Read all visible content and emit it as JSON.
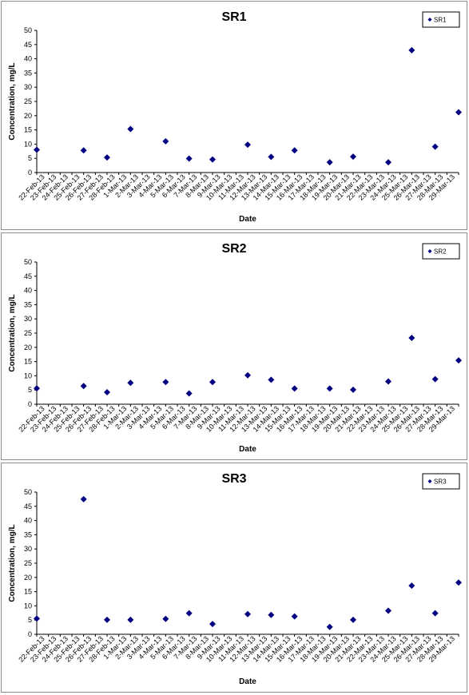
{
  "chart_data": [
    {
      "type": "scatter",
      "title": "SR1",
      "xlabel": "Date",
      "ylabel": "Concentration, mg/L",
      "ylim": [
        0,
        50
      ],
      "yticks": [
        "0",
        "5",
        "10",
        "15",
        "20",
        "25",
        "30",
        "35",
        "40",
        "45",
        "50"
      ],
      "categories": [
        "22-Feb-13",
        "23-Feb-13",
        "24-Feb-13",
        "25-Feb-13",
        "26-Feb-13",
        "27-Feb-13",
        "28-Feb-13",
        "1-Mar-13",
        "2-Mar-13",
        "3-Mar-13",
        "4-Mar-13",
        "5-Mar-13",
        "6-Mar-13",
        "7-Mar-13",
        "8-Mar-13",
        "9-Mar-13",
        "10-Mar-13",
        "11-Mar-13",
        "12-Mar-13",
        "13-Mar-13",
        "14-Mar-13",
        "15-Mar-13",
        "16-Mar-13",
        "17-Mar-13",
        "18-Mar-13",
        "19-Mar-13",
        "20-Mar-13",
        "21-Mar-13",
        "22-Mar-13",
        "23-Mar-13",
        "24-Mar-13",
        "25-Mar-13",
        "26-Mar-13",
        "27-Mar-13",
        "28-Mar-13",
        "29-Mar-13"
      ],
      "legend_position": "top-right",
      "color": "#000080",
      "series": [
        {
          "name": "SR1",
          "points": [
            {
              "x": "22-Feb-13",
              "y": 8.0
            },
            {
              "x": "26-Feb-13",
              "y": 7.8
            },
            {
              "x": "28-Feb-13",
              "y": 5.3
            },
            {
              "x": "2-Mar-13",
              "y": 15.3
            },
            {
              "x": "5-Mar-13",
              "y": 11.0
            },
            {
              "x": "7-Mar-13",
              "y": 4.9
            },
            {
              "x": "9-Mar-13",
              "y": 4.6
            },
            {
              "x": "12-Mar-13",
              "y": 9.8
            },
            {
              "x": "14-Mar-13",
              "y": 5.5
            },
            {
              "x": "16-Mar-13",
              "y": 7.8
            },
            {
              "x": "19-Mar-13",
              "y": 3.6
            },
            {
              "x": "21-Mar-13",
              "y": 5.6
            },
            {
              "x": "24-Mar-13",
              "y": 3.6
            },
            {
              "x": "26-Mar-13",
              "y": 43.0
            },
            {
              "x": "28-Mar-13",
              "y": 9.1
            },
            {
              "x": "30-Mar-13",
              "y": 21.2
            }
          ]
        }
      ]
    },
    {
      "type": "scatter",
      "title": "SR2",
      "xlabel": "Date",
      "ylabel": "Concentration, mg/L",
      "ylim": [
        0,
        50
      ],
      "yticks": [
        "0",
        "5",
        "10",
        "15",
        "20",
        "25",
        "30",
        "35",
        "40",
        "45",
        "50"
      ],
      "categories": [
        "22-Feb-13",
        "23-Feb-13",
        "24-Feb-13",
        "25-Feb-13",
        "26-Feb-13",
        "27-Feb-13",
        "28-Feb-13",
        "1-Mar-13",
        "2-Mar-13",
        "3-Mar-13",
        "4-Mar-13",
        "5-Mar-13",
        "6-Mar-13",
        "7-Mar-13",
        "8-Mar-13",
        "9-Mar-13",
        "10-Mar-13",
        "11-Mar-13",
        "12-Mar-13",
        "13-Mar-13",
        "14-Mar-13",
        "15-Mar-13",
        "16-Mar-13",
        "17-Mar-13",
        "18-Mar-13",
        "19-Mar-13",
        "20-Mar-13",
        "21-Mar-13",
        "22-Mar-13",
        "23-Mar-13",
        "24-Mar-13",
        "25-Mar-13",
        "26-Mar-13",
        "27-Mar-13",
        "28-Mar-13",
        "29-Mar-13"
      ],
      "legend_position": "top-right",
      "color": "#000080",
      "series": [
        {
          "name": "SR2",
          "points": [
            {
              "x": "22-Feb-13",
              "y": 5.6
            },
            {
              "x": "26-Feb-13",
              "y": 6.4
            },
            {
              "x": "28-Feb-13",
              "y": 4.2
            },
            {
              "x": "2-Mar-13",
              "y": 7.5
            },
            {
              "x": "5-Mar-13",
              "y": 7.8
            },
            {
              "x": "7-Mar-13",
              "y": 3.8
            },
            {
              "x": "9-Mar-13",
              "y": 7.8
            },
            {
              "x": "12-Mar-13",
              "y": 10.2
            },
            {
              "x": "14-Mar-13",
              "y": 8.6
            },
            {
              "x": "16-Mar-13",
              "y": 5.5
            },
            {
              "x": "19-Mar-13",
              "y": 5.5
            },
            {
              "x": "21-Mar-13",
              "y": 5.1
            },
            {
              "x": "24-Mar-13",
              "y": 8.0
            },
            {
              "x": "26-Mar-13",
              "y": 23.3
            },
            {
              "x": "28-Mar-13",
              "y": 8.8
            },
            {
              "x": "30-Mar-13",
              "y": 15.4
            }
          ]
        }
      ]
    },
    {
      "type": "scatter",
      "title": "SR3",
      "xlabel": "Date",
      "ylabel": "Concentration, mg/L",
      "ylim": [
        0,
        50
      ],
      "yticks": [
        "0",
        "5",
        "10",
        "15",
        "20",
        "25",
        "30",
        "35",
        "40",
        "45",
        "50"
      ],
      "categories": [
        "22-Feb-13",
        "23-Feb-13",
        "24-Feb-13",
        "25-Feb-13",
        "26-Feb-13",
        "27-Feb-13",
        "28-Feb-13",
        "1-Mar-13",
        "2-Mar-13",
        "3-Mar-13",
        "4-Mar-13",
        "5-Mar-13",
        "6-Mar-13",
        "7-Mar-13",
        "8-Mar-13",
        "9-Mar-13",
        "10-Mar-13",
        "11-Mar-13",
        "12-Mar-13",
        "13-Mar-13",
        "14-Mar-13",
        "15-Mar-13",
        "16-Mar-13",
        "17-Mar-13",
        "18-Mar-13",
        "19-Mar-13",
        "20-Mar-13",
        "21-Mar-13",
        "22-Mar-13",
        "23-Mar-13",
        "24-Mar-13",
        "25-Mar-13",
        "26-Mar-13",
        "27-Mar-13",
        "28-Mar-13",
        "29-Mar-13"
      ],
      "legend_position": "top-right",
      "color": "#000080",
      "series": [
        {
          "name": "SR3",
          "points": [
            {
              "x": "22-Feb-13",
              "y": 5.5
            },
            {
              "x": "26-Feb-13",
              "y": 47.5
            },
            {
              "x": "28-Feb-13",
              "y": 5.1
            },
            {
              "x": "2-Mar-13",
              "y": 5.1
            },
            {
              "x": "5-Mar-13",
              "y": 5.4
            },
            {
              "x": "7-Mar-13",
              "y": 7.4
            },
            {
              "x": "9-Mar-13",
              "y": 3.6
            },
            {
              "x": "12-Mar-13",
              "y": 7.1
            },
            {
              "x": "14-Mar-13",
              "y": 6.8
            },
            {
              "x": "16-Mar-13",
              "y": 6.3
            },
            {
              "x": "19-Mar-13",
              "y": 2.6
            },
            {
              "x": "21-Mar-13",
              "y": 5.1
            },
            {
              "x": "24-Mar-13",
              "y": 8.3
            },
            {
              "x": "26-Mar-13",
              "y": 17.1
            },
            {
              "x": "28-Mar-13",
              "y": 7.4
            },
            {
              "x": "30-Mar-13",
              "y": 18.2
            }
          ]
        }
      ]
    }
  ]
}
